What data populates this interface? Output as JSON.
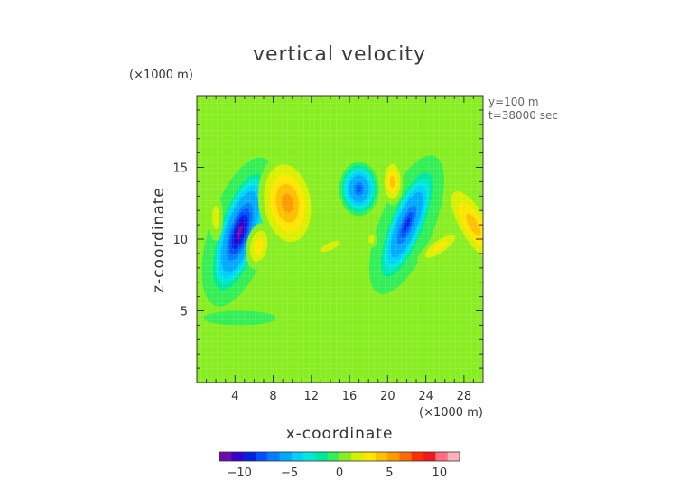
{
  "chart_data": {
    "type": "heatmap",
    "title": "vertical velocity",
    "xlabel": "x-coordinate",
    "ylabel": "z-coordinate",
    "x_unit": "(×1000 m)",
    "annotations": [
      "y=100 m",
      "t=38000 sec"
    ],
    "xlim": [
      0,
      30
    ],
    "ylim": [
      0,
      20
    ],
    "xticks": [
      "4",
      "8",
      "12",
      "16",
      "20",
      "24",
      "28"
    ],
    "yticks": [
      "5",
      "10",
      "15"
    ],
    "colorbar": {
      "range": [
        -12,
        12
      ],
      "ticks": [
        "−10",
        "−5",
        "0",
        "5",
        "10"
      ],
      "colors": [
        "#6a0dad",
        "#3500c8",
        "#0022e0",
        "#0050ff",
        "#0080ff",
        "#00aaff",
        "#00d0ff",
        "#00e8d8",
        "#00e8a0",
        "#33ee55",
        "#88ee22",
        "#d8f000",
        "#ffe600",
        "#ffc000",
        "#ff9a00",
        "#ff6a00",
        "#ff3000",
        "#f01818",
        "#ff6e80",
        "#ffb0b8"
      ]
    },
    "features": [
      {
        "x": 4.5,
        "z": 10.5,
        "w": -11,
        "shape": "elongated tilted downdraft"
      },
      {
        "x": 9.5,
        "z": 12.5,
        "w": 5,
        "shape": "updraft lobe"
      },
      {
        "x": 17,
        "z": 13.5,
        "w": -8,
        "shape": "downdraft"
      },
      {
        "x": 22,
        "z": 11,
        "w": -9,
        "shape": "elongated tilted downdraft"
      },
      {
        "x": 20.5,
        "z": 14,
        "w": 4,
        "shape": "updraft"
      },
      {
        "x": 29,
        "z": 11,
        "w": 4,
        "shape": "updraft at edge"
      },
      {
        "x": 14,
        "z": 9.5,
        "w": 2,
        "shape": "small updraft"
      },
      {
        "x": 18.3,
        "z": 10,
        "w": 2,
        "shape": "small updraft"
      }
    ]
  }
}
